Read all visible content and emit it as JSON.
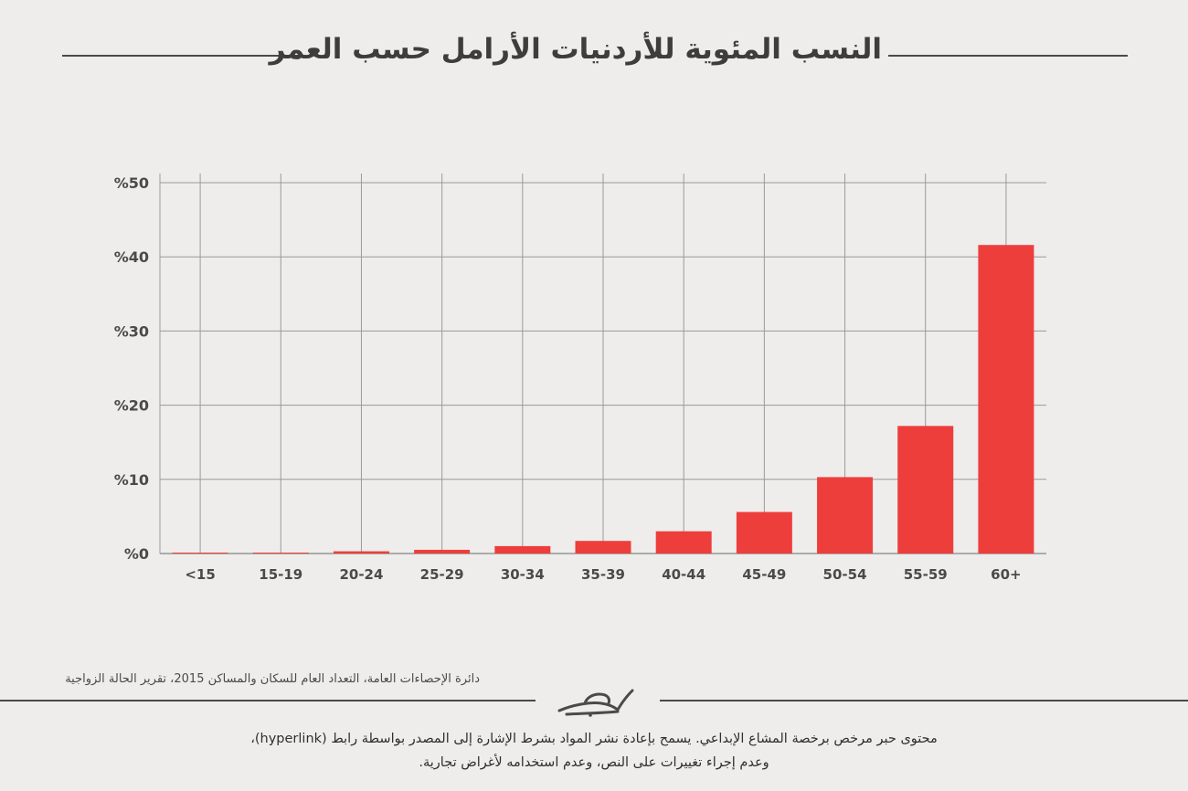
{
  "chart_data": {
    "type": "bar",
    "title": "النسب المئوية للأردنيات الأرامل حسب العمر",
    "categories": [
      "<15",
      "15-19",
      "20-24",
      "25-29",
      "30-34",
      "35-39",
      "40-44",
      "45-49",
      "50-54",
      "55-59",
      "60+"
    ],
    "values": [
      0.05,
      0.1,
      0.3,
      0.5,
      1.0,
      1.7,
      3.0,
      5.6,
      10.3,
      17.2,
      41.6
    ],
    "yticks": [
      "%0",
      "%10",
      "%20",
      "%30",
      "%40",
      "%50"
    ],
    "ylim": [
      0,
      50
    ],
    "grid": true,
    "bar_color": "#ed3e3c"
  },
  "footer": {
    "source": "دائرة الإحصاءات العامة، التعداد العام للسكان والمساكن 2015، تقرير الحالة الزواجية",
    "logo_text": "حبر",
    "license_line1": "محتوى حبر مرخص برخصة المشاع الإبداعي. يسمح بإعادة نشر المواد بشرط الإشارة إلى المصدر بواسطة رابط (hyperlink)،",
    "license_line2": "وعدم إجراء تغييرات على النص، وعدم استخدامه لأغراض تجارية."
  }
}
